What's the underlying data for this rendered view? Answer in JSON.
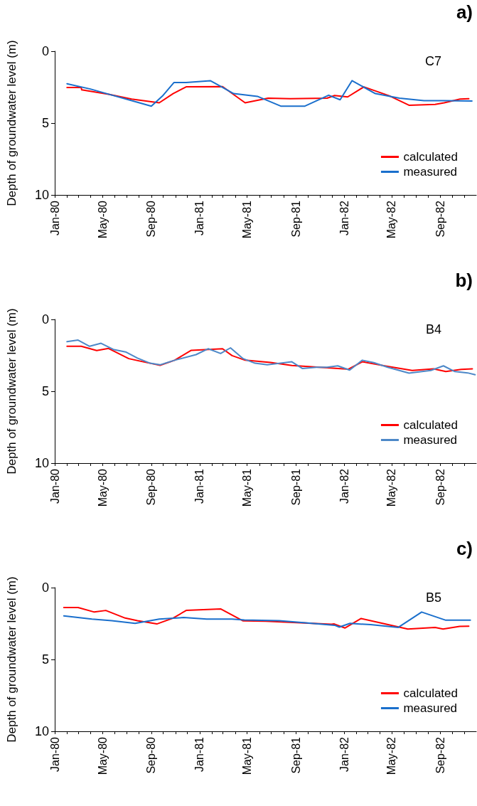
{
  "chart_data": [
    {
      "type": "line",
      "ylabel": "Depth of groundwater level (m)",
      "annotations": [
        "a)",
        "C7"
      ],
      "xlim": [
        "1980-01",
        "1982-12"
      ],
      "xticks": [
        {
          "value": "1980-01",
          "label": "Jan-80"
        },
        {
          "value": "1980-02",
          "label": null
        },
        {
          "value": "1980-03",
          "label": null
        },
        {
          "value": "1980-04",
          "label": null
        },
        {
          "value": "1980-05",
          "label": "May-80"
        },
        {
          "value": "1980-06",
          "label": null
        },
        {
          "value": "1980-07",
          "label": null
        },
        {
          "value": "1980-08",
          "label": null
        },
        {
          "value": "1980-09",
          "label": "Sep-80"
        },
        {
          "value": "1980-10",
          "label": null
        },
        {
          "value": "1980-11",
          "label": null
        },
        {
          "value": "1980-12",
          "label": null
        },
        {
          "value": "1981-01",
          "label": "Jan-81"
        },
        {
          "value": "1981-02",
          "label": null
        },
        {
          "value": "1981-03",
          "label": null
        },
        {
          "value": "1981-04",
          "label": null
        },
        {
          "value": "1981-05",
          "label": "May-81"
        },
        {
          "value": "1981-06",
          "label": null
        },
        {
          "value": "1981-07",
          "label": null
        },
        {
          "value": "1981-08",
          "label": null
        },
        {
          "value": "1981-09",
          "label": "Sep-81"
        },
        {
          "value": "1981-10",
          "label": null
        },
        {
          "value": "1981-11",
          "label": null
        },
        {
          "value": "1981-12",
          "label": null
        },
        {
          "value": "1982-01",
          "label": "Jan-82"
        },
        {
          "value": "1982-02",
          "label": null
        },
        {
          "value": "1982-03",
          "label": null
        },
        {
          "value": "1982-04",
          "label": null
        },
        {
          "value": "1982-05",
          "label": "May-82"
        },
        {
          "value": "1982-06",
          "label": null
        },
        {
          "value": "1982-07",
          "label": null
        },
        {
          "value": "1982-08",
          "label": null
        },
        {
          "value": "1982-09",
          "label": "Sep-82"
        },
        {
          "value": "1982-10",
          "label": null
        },
        {
          "value": "1982-11",
          "label": null
        }
      ],
      "ylim": [
        10,
        0
      ],
      "yticks": [
        0,
        5,
        10
      ],
      "grid": false,
      "legend": "bottom right",
      "marker": "none",
      "line_style": "solid",
      "series": [
        {
          "name": "calculated",
          "color": "#ff0000",
          "x": [
            "1980-02-01",
            "1980-03-08",
            "1980-03-09",
            "1980-05-16",
            "1980-07-13",
            "1980-09-21",
            "1980-10-26",
            "1980-11-28",
            "1981-02-28",
            "1981-04-26",
            "1981-06-23",
            "1981-08-18",
            "1981-11-19",
            "1981-12-08",
            "1982-01-10",
            "1982-02-20",
            "1982-04-25",
            "1982-06-14",
            "1982-08-19",
            "1982-09-11",
            "1982-10-21",
            "1982-11-12"
          ],
          "values": [
            2.52,
            2.52,
            2.69,
            2.99,
            3.33,
            3.59,
            2.95,
            2.48,
            2.46,
            3.59,
            3.27,
            3.31,
            3.27,
            3.08,
            3.18,
            2.48,
            3.1,
            3.76,
            3.7,
            3.59,
            3.33,
            3.31
          ]
        },
        {
          "name": "measured",
          "color": "#1a6fcc",
          "x": [
            "1980-02-01",
            "1980-03-31",
            "1980-05-16",
            "1980-07-28",
            "1980-09-01",
            "1980-09-29",
            "1980-10-28",
            "1980-11-28",
            "1981-01-28",
            "1981-02-28",
            "1981-03-28",
            "1981-05-27",
            "1981-07-25",
            "1981-09-24",
            "1981-11-23",
            "1981-12-22",
            "1982-01-21",
            "1982-03-21",
            "1982-05-21",
            "1982-07-22",
            "1982-09-11",
            "1982-11-20"
          ],
          "values": [
            2.26,
            2.63,
            2.99,
            3.55,
            3.82,
            3.12,
            2.18,
            2.18,
            2.05,
            2.52,
            2.95,
            3.14,
            3.82,
            3.82,
            3.06,
            3.38,
            2.05,
            2.95,
            3.27,
            3.44,
            3.44,
            3.46
          ]
        }
      ]
    },
    {
      "type": "line",
      "ylabel": "Depth of groundwater level (m)",
      "annotations": [
        "b)",
        "B4"
      ],
      "xlim": [
        "1980-01",
        "1982-12"
      ],
      "xticks": [
        {
          "value": "1980-01",
          "label": "Jan-80"
        },
        {
          "value": "1980-02",
          "label": null
        },
        {
          "value": "1980-03",
          "label": null
        },
        {
          "value": "1980-04",
          "label": null
        },
        {
          "value": "1980-05",
          "label": "May-80"
        },
        {
          "value": "1980-06",
          "label": null
        },
        {
          "value": "1980-07",
          "label": null
        },
        {
          "value": "1980-08",
          "label": null
        },
        {
          "value": "1980-09",
          "label": "Sep-80"
        },
        {
          "value": "1980-10",
          "label": null
        },
        {
          "value": "1980-11",
          "label": null
        },
        {
          "value": "1980-12",
          "label": null
        },
        {
          "value": "1981-01",
          "label": "Jan-81"
        },
        {
          "value": "1981-02",
          "label": null
        },
        {
          "value": "1981-03",
          "label": null
        },
        {
          "value": "1981-04",
          "label": null
        },
        {
          "value": "1981-05",
          "label": "May-81"
        },
        {
          "value": "1981-06",
          "label": null
        },
        {
          "value": "1981-07",
          "label": null
        },
        {
          "value": "1981-08",
          "label": null
        },
        {
          "value": "1981-09",
          "label": "Sep-81"
        },
        {
          "value": "1981-10",
          "label": null
        },
        {
          "value": "1981-11",
          "label": null
        },
        {
          "value": "1981-12",
          "label": null
        },
        {
          "value": "1982-01",
          "label": "Jan-82"
        },
        {
          "value": "1982-02",
          "label": null
        },
        {
          "value": "1982-03",
          "label": null
        },
        {
          "value": "1982-04",
          "label": null
        },
        {
          "value": "1982-05",
          "label": "May-82"
        },
        {
          "value": "1982-06",
          "label": null
        },
        {
          "value": "1982-07",
          "label": null
        },
        {
          "value": "1982-08",
          "label": null
        },
        {
          "value": "1982-09",
          "label": "Sep-82"
        },
        {
          "value": "1982-10",
          "label": null
        },
        {
          "value": "1982-11",
          "label": null
        }
      ],
      "ylim": [
        10,
        0
      ],
      "yticks": [
        0,
        5,
        10
      ],
      "grid": false,
      "legend": "bottom right",
      "marker": "none",
      "line_style": "solid",
      "series": [
        {
          "name": "calculated",
          "color": "#ff0000",
          "x": [
            "1980-02-01",
            "1980-03-08",
            "1980-04-16",
            "1980-05-16",
            "1980-07-06",
            "1980-08-29",
            "1980-09-23",
            "1980-10-30",
            "1980-12-11",
            "1981-02-28",
            "1981-03-24",
            "1981-04-26",
            "1981-06-29",
            "1981-08-22",
            "1981-11-27",
            "1982-01-12",
            "1982-02-16",
            "1982-04-21",
            "1982-06-22",
            "1982-08-15",
            "1982-09-15",
            "1982-10-24",
            "1982-11-21"
          ],
          "values": [
            1.87,
            1.87,
            2.17,
            2.02,
            2.73,
            3.05,
            3.2,
            2.84,
            2.15,
            2.04,
            2.52,
            2.84,
            2.99,
            3.2,
            3.38,
            3.46,
            2.95,
            3.27,
            3.55,
            3.44,
            3.63,
            3.48,
            3.44
          ]
        },
        {
          "name": "measured",
          "color": "#4d88c8",
          "x": [
            "1980-02-01",
            "1980-02-29",
            "1980-03-29",
            "1980-04-27",
            "1980-05-28",
            "1980-06-28",
            "1980-07-28",
            "1980-08-29",
            "1980-09-23",
            "1980-10-30",
            "1980-12-23",
            "1981-01-23",
            "1981-02-23",
            "1981-03-20",
            "1981-04-21",
            "1981-05-21",
            "1981-06-21",
            "1981-08-22",
            "1981-09-18",
            "1981-10-23",
            "1981-11-19",
            "1981-12-16",
            "1982-01-15",
            "1982-02-16",
            "1982-03-17",
            "1982-04-21",
            "1982-06-14",
            "1982-08-08",
            "1982-09-09",
            "1982-10-08",
            "1982-11-09",
            "1982-11-28"
          ],
          "values": [
            1.55,
            1.44,
            1.87,
            1.66,
            2.09,
            2.26,
            2.69,
            3.05,
            3.16,
            2.84,
            2.45,
            2.04,
            2.37,
            1.98,
            2.73,
            3.05,
            3.16,
            2.95,
            3.42,
            3.33,
            3.33,
            3.23,
            3.53,
            2.84,
            3.01,
            3.33,
            3.74,
            3.55,
            3.23,
            3.63,
            3.72,
            3.85
          ]
        }
      ]
    },
    {
      "type": "line",
      "ylabel": "Depth of groundwater level (m)",
      "annotations": [
        "c)",
        "B5"
      ],
      "xlim": [
        "1980-01",
        "1982-12"
      ],
      "xticks": [
        {
          "value": "1980-01",
          "label": "Jan-80"
        },
        {
          "value": "1980-02",
          "label": null
        },
        {
          "value": "1980-03",
          "label": null
        },
        {
          "value": "1980-04",
          "label": null
        },
        {
          "value": "1980-05",
          "label": "May-80"
        },
        {
          "value": "1980-06",
          "label": null
        },
        {
          "value": "1980-07",
          "label": null
        },
        {
          "value": "1980-08",
          "label": null
        },
        {
          "value": "1980-09",
          "label": "Sep-80"
        },
        {
          "value": "1980-10",
          "label": null
        },
        {
          "value": "1980-11",
          "label": null
        },
        {
          "value": "1980-12",
          "label": null
        },
        {
          "value": "1981-01",
          "label": "Jan-81"
        },
        {
          "value": "1981-02",
          "label": null
        },
        {
          "value": "1981-03",
          "label": null
        },
        {
          "value": "1981-04",
          "label": null
        },
        {
          "value": "1981-05",
          "label": "May-81"
        },
        {
          "value": "1981-06",
          "label": null
        },
        {
          "value": "1981-07",
          "label": null
        },
        {
          "value": "1981-08",
          "label": null
        },
        {
          "value": "1981-09",
          "label": "Sep-81"
        },
        {
          "value": "1981-10",
          "label": null
        },
        {
          "value": "1981-11",
          "label": null
        },
        {
          "value": "1981-12",
          "label": null
        },
        {
          "value": "1982-01",
          "label": "Jan-82"
        },
        {
          "value": "1982-02",
          "label": null
        },
        {
          "value": "1982-03",
          "label": null
        },
        {
          "value": "1982-04",
          "label": null
        },
        {
          "value": "1982-05",
          "label": "May-82"
        },
        {
          "value": "1982-06",
          "label": null
        },
        {
          "value": "1982-07",
          "label": null
        },
        {
          "value": "1982-08",
          "label": null
        },
        {
          "value": "1982-09",
          "label": "Sep-82"
        },
        {
          "value": "1982-10",
          "label": null
        },
        {
          "value": "1982-11",
          "label": null
        }
      ],
      "ylim": [
        10,
        0
      ],
      "yticks": [
        0,
        5,
        10
      ],
      "grid": false,
      "legend": "bottom right",
      "marker": "none",
      "line_style": "solid",
      "series": [
        {
          "name": "calculated",
          "color": "#ff0000",
          "x": [
            "1980-01-24",
            "1980-02-29",
            "1980-04-10",
            "1980-05-09",
            "1980-06-27",
            "1980-07-28",
            "1980-09-15",
            "1980-10-26",
            "1980-11-28",
            "1981-02-23",
            "1981-04-21",
            "1981-06-17",
            "1981-11-30",
            "1981-12-07",
            "1982-01-03",
            "1982-02-13",
            "1982-05-20",
            "1982-06-11",
            "1982-08-19",
            "1982-09-08",
            "1982-10-20",
            "1982-11-12"
          ],
          "values": [
            1.39,
            1.39,
            1.7,
            1.59,
            2.12,
            2.3,
            2.53,
            2.12,
            1.59,
            1.48,
            2.32,
            2.34,
            2.55,
            2.53,
            2.81,
            2.15,
            2.75,
            2.88,
            2.77,
            2.88,
            2.7,
            2.68
          ]
        },
        {
          "name": "measured",
          "color": "#1a6fcc",
          "x": [
            "1980-01-24",
            "1980-04-04",
            "1980-05-24",
            "1980-07-22",
            "1980-09-21",
            "1980-11-22",
            "1981-01-19",
            "1981-03-24",
            "1981-04-24",
            "1981-07-21",
            "1981-09-26",
            "1981-12-08",
            "1981-12-20",
            "1982-01-16",
            "1982-03-09",
            "1982-05-18",
            "1982-07-16",
            "1982-09-15",
            "1982-11-16"
          ],
          "values": [
            1.97,
            2.19,
            2.3,
            2.49,
            2.19,
            2.08,
            2.19,
            2.19,
            2.25,
            2.3,
            2.45,
            2.62,
            2.75,
            2.49,
            2.58,
            2.77,
            1.7,
            2.27,
            2.27
          ]
        }
      ]
    }
  ]
}
